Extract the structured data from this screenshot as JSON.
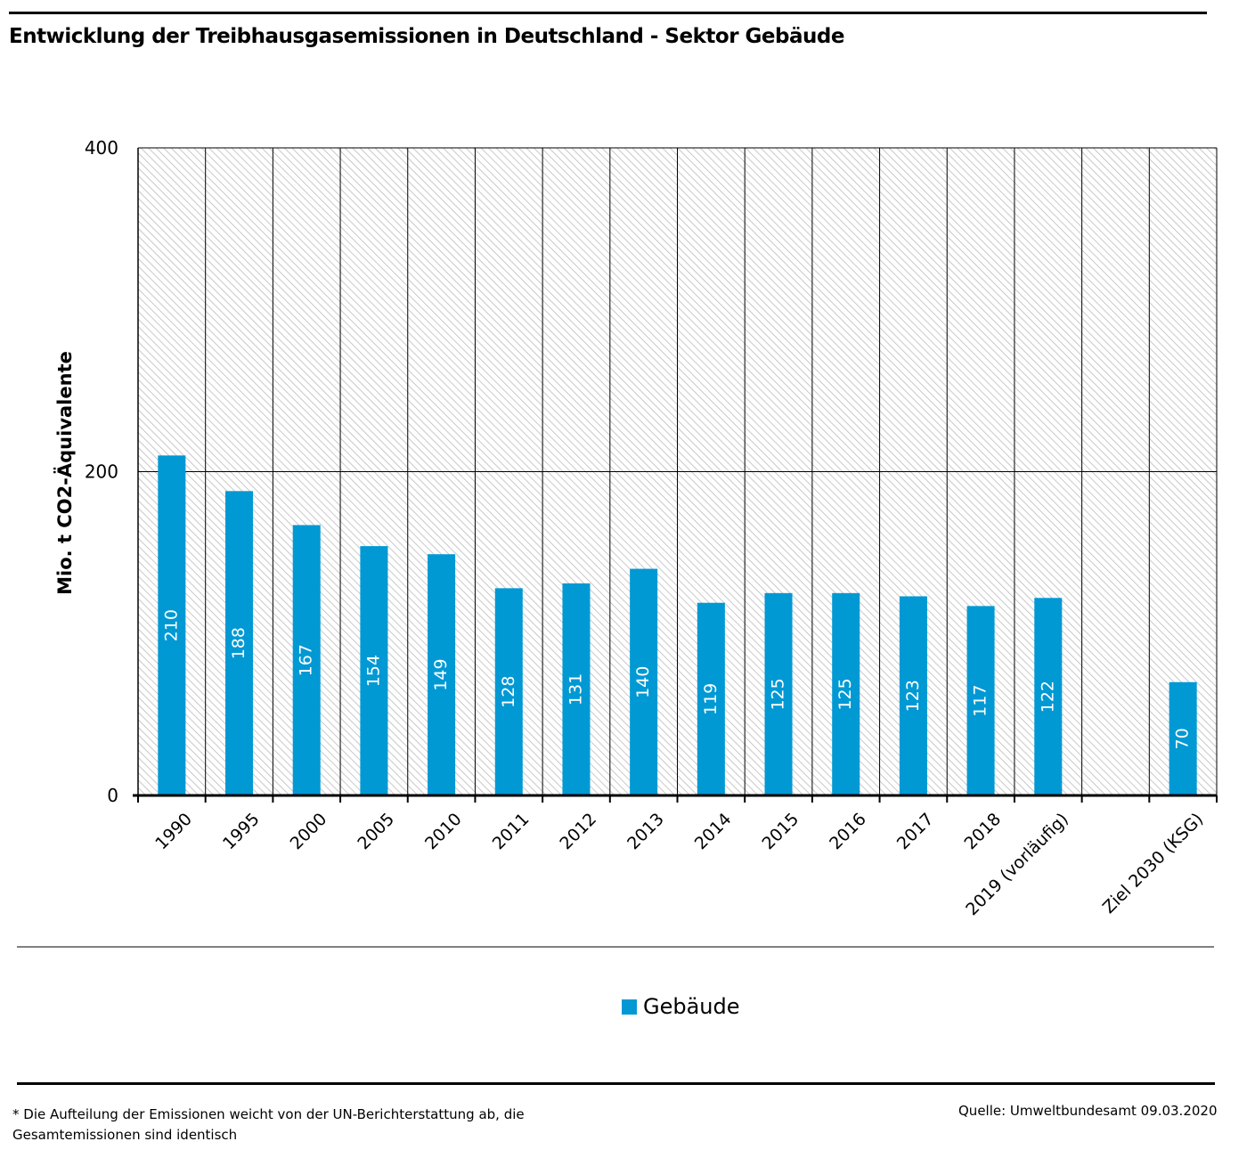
{
  "page": {
    "title": "Entwicklung der Treibhausgasemissionen in Deutschland - Sektor Gebäude",
    "footnote": "* Die Aufteilung der Emissionen weicht von der UN-Berichterstattung ab, die Gesamtemissionen sind identisch",
    "source": "Quelle: Umweltbundesamt  09.03.2020"
  },
  "colors": {
    "bar": "#0099d4",
    "hatch": "#bbbbbb",
    "bar_label": "#ffffff"
  },
  "chart_data": {
    "type": "bar",
    "title": "Entwicklung der Treibhausgasemissionen in Deutschland - Sektor Gebäude",
    "xlabel": "",
    "ylabel": "Mio. t CO2-Äquivalente",
    "ylim": [
      0,
      400
    ],
    "yticks": [
      0,
      200,
      400
    ],
    "grid": true,
    "legend_position": "bottom-center",
    "categories": [
      "1990",
      "1995",
      "2000",
      "2005",
      "2010",
      "2011",
      "2012",
      "2013",
      "2014",
      "2015",
      "2016",
      "2017",
      "2018",
      "2019 (vorläufig)",
      "",
      "Ziel 2030 (KSG)"
    ],
    "series": [
      {
        "name": "Gebäude",
        "values": [
          210,
          188,
          167,
          154,
          149,
          128,
          131,
          140,
          119,
          125,
          125,
          123,
          117,
          122,
          null,
          70
        ],
        "labels": [
          "210",
          "188",
          "167",
          "154",
          "149",
          "128",
          "131",
          "140",
          "119",
          "125",
          "125",
          "123",
          "117",
          "122",
          "",
          "70"
        ]
      }
    ]
  }
}
